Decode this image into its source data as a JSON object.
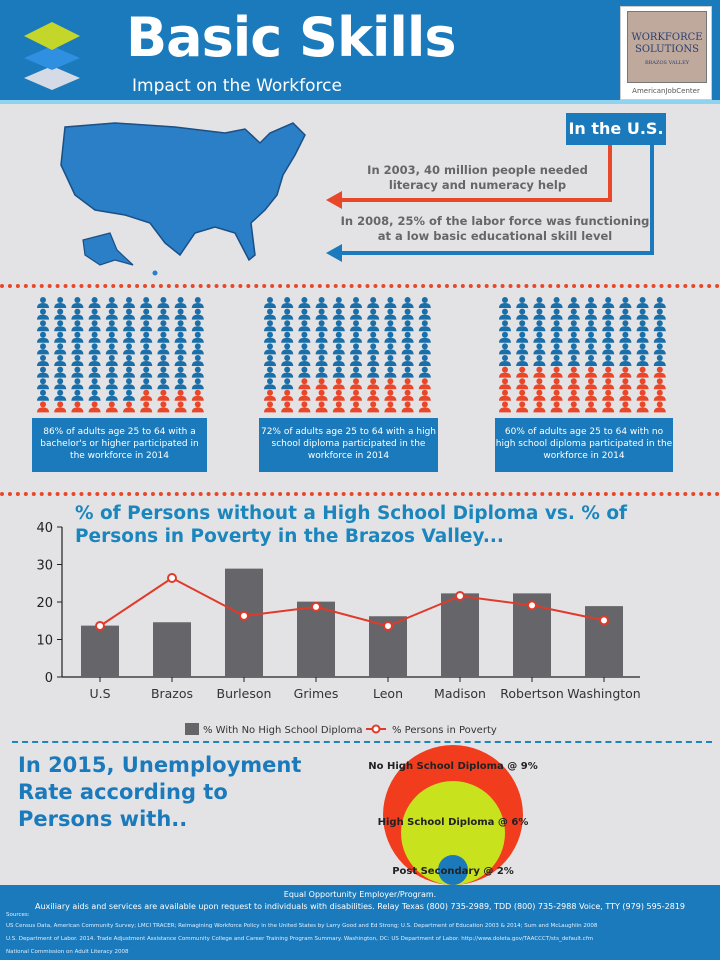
{
  "header": {
    "title": "Basic Skills",
    "subtitle": "Impact on the Workforce",
    "logo": {
      "line1": "WORKFORCE",
      "line2": "SOLUTIONS",
      "line3": "BRAZOS VALLEY",
      "line4": "AmericanJobCenter"
    }
  },
  "us_facts": {
    "label": "In the U.S.",
    "fact1": "In 2003, 40 million people needed literacy and numeracy help",
    "fact2": "In 2008, 25% of the labor force was functioning at a low basic educational skill level",
    "colors": {
      "fact1": "#e8472a",
      "fact2": "#1b7abb"
    }
  },
  "participation": [
    {
      "percent": 86,
      "text": "86% of adults age 25 to 64 with a bachelor's or higher participated in the workforce in 2014"
    },
    {
      "percent": 72,
      "text": "72% of adults age 25 to 64 with a high school diploma participated in the workforce in 2014"
    },
    {
      "percent": 60,
      "text": "60% of adults age 25 to 64 with no high school diploma participated in the workforce in 2014"
    }
  ],
  "chart_data": {
    "type": "bar",
    "title": "% of Persons without a High School Diploma vs. % of Persons in Poverty in the Brazos Valley...",
    "categories": [
      "U.S",
      "Brazos",
      "Burleson",
      "Grimes",
      "Leon",
      "Madison",
      "Robertson",
      "Washington"
    ],
    "ylim": [
      0,
      40
    ],
    "yticks": [
      "0",
      "10",
      "20",
      "30",
      "40"
    ],
    "series": [
      {
        "name": "% With No High School Diploma",
        "type": "bar",
        "color": "#66666a",
        "values": [
          13.7,
          14.6,
          28.9,
          20.1,
          16.2,
          22.3,
          22.3,
          18.9
        ]
      },
      {
        "name": "% Persons in Poverty",
        "type": "line",
        "color": "#e03a2a",
        "values": [
          13.6,
          26.4,
          16.3,
          18.7,
          13.6,
          21.6,
          19.1,
          15.1
        ]
      }
    ],
    "legend": "bottom",
    "grid": false
  },
  "unemployment": {
    "heading": "In 2015, Unemployment Rate according to Persons with..",
    "levels": [
      {
        "label": "No High School Diploma @ 9%",
        "rate": 9,
        "color": "#f23c1e"
      },
      {
        "label": "High School Diploma @ 6%",
        "rate": 6,
        "color": "#c9e21e"
      },
      {
        "label": "Post Secondary @ 2%",
        "rate": 2,
        "color": "#1b7abb"
      }
    ]
  },
  "footer": {
    "line1": "Equal Opportunity Employer/Program.",
    "line2": "Auxiliary aids and services are available upon request to individuals with disabilities.  Relay Texas (800) 735-2989, TDD (800) 735-2988 Voice, TTY (979) 595-2819",
    "sources_label": "Sources:",
    "sources": [
      "US Census Data, American Community Survey; LMCI TRACER; Reimagining Workforce Policy in the United States by Larry Good and Ed Strong; U.S. Department of Education 2003 & 2014; Sum and McLaughlin 2008",
      "U.S. Department of Labor. 2014. Trade Adjustment Assistance Community College and Career Training Program Summary. Washington, DC: US Department of Labor. http://www.doleta.gov/TAACCCT/sts_default.cfm",
      "National Commission on Adult Literacy 2008"
    ]
  }
}
